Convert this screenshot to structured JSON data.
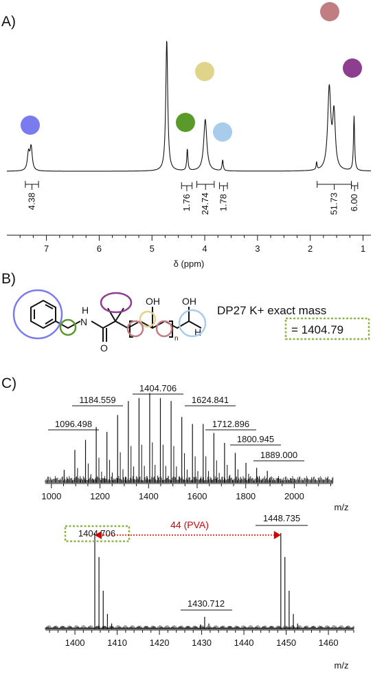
{
  "panels": {
    "a": "A)",
    "b": "B)",
    "c": "C)"
  },
  "colors": {
    "blue": "#7b7bf0",
    "green": "#5a9a2a",
    "yellow": "#e0d38a",
    "lightblue": "#a8ccec",
    "rose": "#c07d82",
    "purple": "#8e3e8e",
    "dashed_box": "#8fb34a",
    "pva_arrow": "#d40000"
  },
  "nmr": {
    "xlabel": "δ (ppm)",
    "xlim": [
      7.75,
      0.85
    ],
    "ticks": [
      7,
      6,
      5,
      4,
      3,
      2,
      1
    ],
    "tick_labels": [
      "7",
      "6",
      "5",
      "4",
      "3",
      "2",
      "1"
    ],
    "peaks": [
      {
        "ppm": 7.34,
        "height": 0.16,
        "width": 0.025,
        "color_key": "blue"
      },
      {
        "ppm": 7.29,
        "height": 0.21,
        "width": 0.025,
        "color_key": null
      },
      {
        "ppm": 4.72,
        "height": 1.2,
        "width": 0.022,
        "color_key": null
      },
      {
        "ppm": 4.33,
        "height": 0.2,
        "width": 0.013,
        "color_key": "green"
      },
      {
        "ppm": 3.99,
        "height": 0.47,
        "width": 0.035,
        "color_key": "yellow"
      },
      {
        "ppm": 3.66,
        "height": 0.1,
        "width": 0.013,
        "color_key": "lightblue"
      },
      {
        "ppm": 1.88,
        "height": 0.07,
        "width": 0.01,
        "color_key": null
      },
      {
        "ppm": 1.64,
        "height": 0.74,
        "width": 0.035,
        "color_key": "rose"
      },
      {
        "ppm": 1.55,
        "height": 0.5,
        "width": 0.03,
        "color_key": null
      },
      {
        "ppm": 1.17,
        "height": 0.5,
        "width": 0.013,
        "color_key": "purple"
      }
    ],
    "integrations": [
      {
        "from": 7.4,
        "to": 7.15,
        "value": "4.38"
      },
      {
        "from": 4.44,
        "to": 4.24,
        "value": "1.76"
      },
      {
        "from": 4.15,
        "to": 3.82,
        "value": "24.74"
      },
      {
        "from": 3.72,
        "to": 3.57,
        "value": "1.78"
      },
      {
        "from": 1.87,
        "to": 1.22,
        "value": "51.73"
      },
      {
        "from": 1.22,
        "to": 1.1,
        "value": "6.00"
      }
    ]
  },
  "structure": {
    "atoms": {
      "nh_n": "N",
      "nh_h": "H",
      "carbonyl_o": "O",
      "oh1": "OH",
      "oh2": "OH",
      "terminal_h": "H",
      "repeat_n": "n"
    },
    "mass_title": "DP27 K+ exact mass",
    "mass_value": "= 1404.79"
  },
  "chart_data": [
    {
      "type": "bar",
      "title": "",
      "xlabel": "m/z",
      "ylabel": "",
      "xlim": [
        975,
        2160
      ],
      "ticks": [
        1000,
        1200,
        1400,
        1600,
        1800,
        2000
      ],
      "tick_labels": [
        "1000",
        "1200",
        "1400",
        "1600",
        "1800",
        "2000"
      ],
      "series": [
        {
          "x": [
            1052.5,
            1096.498,
            1140.5,
            1184.559,
            1228.6,
            1272.6,
            1316.7,
            1360.7,
            1404.706,
            1448.7,
            1492.8,
            1536.8,
            1580.8,
            1624.841,
            1668.9,
            1712.896,
            1756.9,
            1800.945,
            1845.0,
            1889.0,
            1933.0,
            1977.0
          ],
          "values": [
            0.13,
            0.33,
            0.43,
            0.56,
            0.51,
            0.68,
            0.82,
            0.85,
            0.9,
            0.85,
            0.82,
            0.66,
            0.59,
            0.59,
            0.5,
            0.4,
            0.3,
            0.2,
            0.15,
            0.12,
            0.05,
            0.03
          ]
        }
      ],
      "labels": [
        "1096.498",
        "1184.559",
        "1404.706",
        "1624.841",
        "1712.896",
        "1800.945",
        "1889.000"
      ]
    },
    {
      "type": "bar",
      "title": "",
      "xlabel": "m/z",
      "ylabel": "",
      "xlim": [
        1393,
        1466
      ],
      "ticks": [
        1400,
        1410,
        1420,
        1430,
        1440,
        1450,
        1460
      ],
      "tick_labels": [
        "1400",
        "1410",
        "1420",
        "1430",
        "1440",
        "1450",
        "1460"
      ],
      "series": [
        {
          "x": [
            1404.706,
            1405.7,
            1406.7,
            1407.7,
            1408.7,
            1429.7,
            1430.712,
            1431.7,
            1448.735,
            1449.7,
            1450.7,
            1451.7,
            1452.7
          ],
          "values": [
            1.0,
            0.75,
            0.4,
            0.16,
            0.06,
            0.05,
            0.13,
            0.06,
            1.0,
            0.75,
            0.4,
            0.16,
            0.06
          ]
        }
      ],
      "labels": [
        "1404.706",
        "1430.712",
        "1448.735"
      ],
      "annotation": "44 (PVA)"
    }
  ]
}
